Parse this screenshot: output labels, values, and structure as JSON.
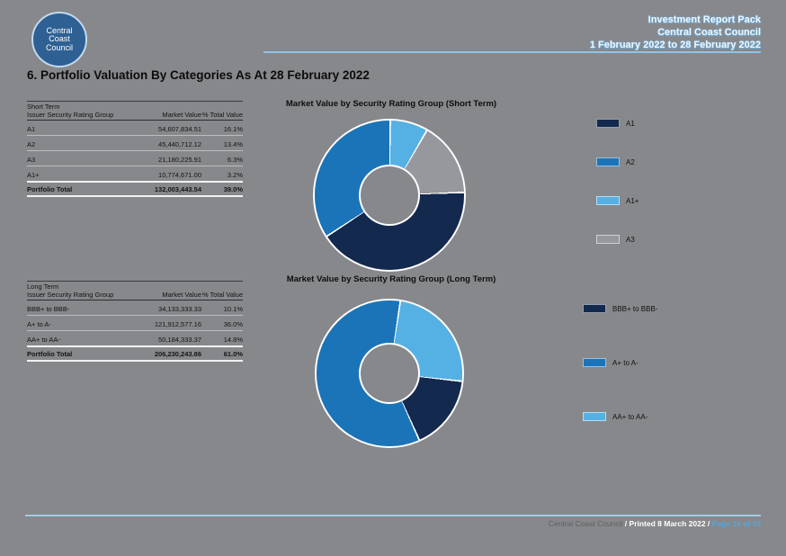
{
  "colors": {
    "background": "#87888b",
    "accent_line": "#8fc4ea",
    "navy": "#14294e",
    "blue": "#1b74b8",
    "light_blue": "#55b1e4",
    "slice_gray": "#97989d",
    "logo_bg": "#2e6094"
  },
  "header": {
    "logo": {
      "line1": "Central",
      "line2": "Coast",
      "line3": "Council"
    },
    "report_title": "Investment Report Pack",
    "org": "Central Coast Council",
    "period": "1 February 2022 to 28 February 2022"
  },
  "page_title": "6. Portfolio Valuation By Categories As At 28 February 2022",
  "tables": {
    "columns": {
      "group": "Issuer Security Rating Group",
      "market_value": "Market Value",
      "pct": "% Total Value"
    },
    "short": {
      "caption": "Short Term",
      "rows": [
        {
          "label": "A1",
          "value": "54,607,834.51",
          "pct": "16.1%"
        },
        {
          "label": "A2",
          "value": "45,440,712.12",
          "pct": "13.4%"
        },
        {
          "label": "A3",
          "value": "21,180,225.91",
          "pct": "6.3%"
        },
        {
          "label": "A1+",
          "value": "10,774,671.00",
          "pct": "3.2%"
        }
      ],
      "total": {
        "label": "Portfolio Total",
        "value": "132,003,443.54",
        "pct": "39.0%"
      }
    },
    "long": {
      "caption": "Long Term",
      "rows": [
        {
          "label": "BBB+ to BBB-",
          "value": "34,133,333.33",
          "pct": "10.1%"
        },
        {
          "label": "A+ to A-",
          "value": "121,912,577.16",
          "pct": "36.0%"
        },
        {
          "label": "AA+ to AA-",
          "value": "50,184,333.37",
          "pct": "14.8%"
        }
      ],
      "total": {
        "label": "Portfolio Total",
        "value": "206,230,243.86",
        "pct": "61.0%"
      }
    }
  },
  "chart_data": [
    {
      "type": "pie",
      "variant": "donut",
      "title": "Market Value by Security Rating Group (Short Term)",
      "start_angle_deg": 0,
      "legend_position": "right",
      "slices": [
        {
          "label": "A1+",
          "value": 10774671.0,
          "pct_of_group": 8.2,
          "color": "#55b1e4"
        },
        {
          "label": "A3",
          "value": 21180225.91,
          "pct_of_group": 16.0,
          "color": "#97989d"
        },
        {
          "label": "A1",
          "value": 54607834.51,
          "pct_of_group": 41.4,
          "color": "#14294e"
        },
        {
          "label": "A2",
          "value": 45440712.12,
          "pct_of_group": 34.4,
          "color": "#1b74b8"
        }
      ],
      "legend": [
        {
          "label": "A1",
          "color": "#14294e"
        },
        {
          "label": "A2",
          "color": "#1b74b8"
        },
        {
          "label": "A1+",
          "color": "#55b1e4"
        },
        {
          "label": "A3",
          "color": "#97989d"
        }
      ]
    },
    {
      "type": "pie",
      "variant": "donut",
      "title": "Market Value by Security Rating Group (Long Term)",
      "start_angle_deg": 8,
      "legend_position": "right",
      "slices": [
        {
          "label": "AA+ to AA-",
          "value": 50184333.37,
          "pct_of_group": 24.3,
          "color": "#55b1e4"
        },
        {
          "label": "BBB+ to BBB-",
          "value": 34133333.33,
          "pct_of_group": 16.6,
          "color": "#14294e"
        },
        {
          "label": "A+ to A-",
          "value": 121912577.16,
          "pct_of_group": 59.1,
          "color": "#1b74b8"
        }
      ],
      "legend": [
        {
          "label": "BBB+ to BBB-",
          "color": "#14294e"
        },
        {
          "label": "A+ to A-",
          "color": "#1b74b8"
        },
        {
          "label": "AA+ to AA-",
          "color": "#55b1e4"
        }
      ]
    }
  ],
  "footer": {
    "org": "Central Coast Council",
    "printed": " / Printed 8 March 2022 / ",
    "page": "Page 14 of 30"
  }
}
